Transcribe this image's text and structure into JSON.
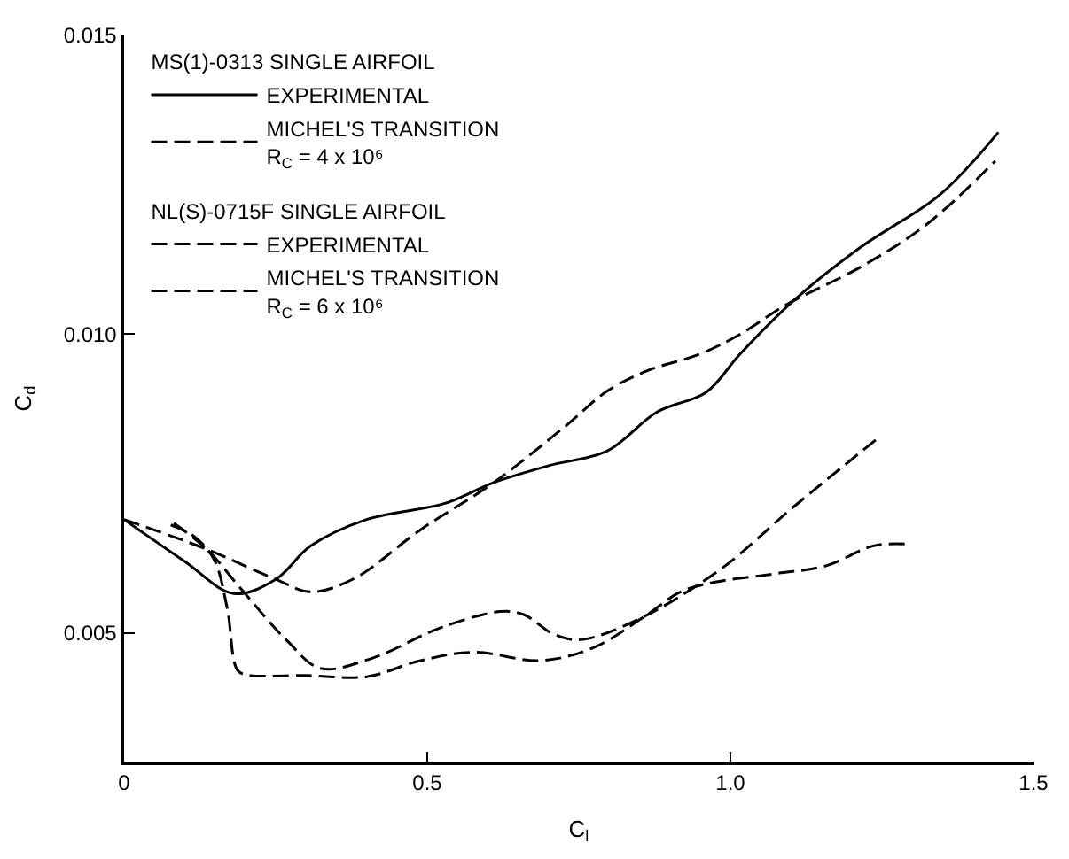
{
  "chart_data": {
    "type": "line",
    "xlabel": "C$_{l}$",
    "ylabel": "C$_{d}$",
    "xlim": [
      0,
      1.5
    ],
    "ylim": [
      0.00285,
      0.015
    ],
    "xticks": [
      0,
      0.5,
      {
        "value": 1,
        "label": "1.0"
      },
      1.5
    ],
    "yticks": [
      0.005,
      {
        "value": 0.01,
        "label": "0.010"
      },
      0.015
    ],
    "legend": "top left",
    "marker": "none",
    "annotations": [
      "MS(1)-0313 SINGLE AIRFOIL",
      "NL(S)-0715F SINGLE AIRFOIL"
    ],
    "series": [
      {
        "name": "EXPERIMENTAL",
        "color": "#000000",
        "line_style": "solid",
        "x": [
          0,
          0.1,
          0.181,
          0.25,
          0.308,
          0.4,
          0.529,
          0.61,
          0.7,
          0.797,
          0.879,
          0.96,
          1.016,
          1.104,
          1.214,
          1.346,
          1.442
        ],
        "values": [
          0.0069,
          0.0062,
          0.00566,
          0.0059,
          0.00646,
          0.0069,
          0.00717,
          0.00752,
          0.0078,
          0.00805,
          0.0087,
          0.00903,
          0.00967,
          0.01056,
          0.01145,
          0.01234,
          0.01338
        ]
      },
      {
        "name": "MICHEL'S TRANSITION\nR$_{C}$ = 4 x 10⁶",
        "color": "#000000",
        "line_style": "dashed",
        "x": [
          0,
          0.137,
          0.25,
          0.308,
          0.379,
          0.489,
          0.61,
          0.73,
          0.797,
          0.863,
          0.95,
          1.016,
          1.093,
          1.214,
          1.324,
          1.437
        ],
        "values": [
          0.0069,
          0.0064,
          0.0059,
          0.00569,
          0.00591,
          0.00673,
          0.00752,
          0.00848,
          0.00905,
          0.00939,
          0.00967,
          0.01,
          0.0105,
          0.01112,
          0.01184,
          0.0129
        ]
      },
      {
        "name": "EXPERIMENTAL",
        "color": "#000000",
        "line_style": "dashed",
        "x": [
          0.077,
          0.115,
          0.148,
          0.17,
          0.187,
          0.203,
          0.3,
          0.4,
          0.489,
          0.577,
          0.687,
          0.775,
          0.863,
          0.918,
          0.973,
          1.071,
          1.159,
          1.236,
          1.291
        ],
        "values": [
          0.00681,
          0.00662,
          0.00624,
          0.00542,
          0.00438,
          0.0043,
          0.00429,
          0.00427,
          0.00454,
          0.00468,
          0.00454,
          0.00476,
          0.00531,
          0.00569,
          0.00585,
          0.00599,
          0.00613,
          0.00646,
          0.00649
        ]
      },
      {
        "name": "MICHEL'S TRANSITION\nR$_{C}$ = 6 x 10⁶",
        "color": "#000000",
        "line_style": "dashed",
        "x": [
          0.082,
          0.137,
          0.192,
          0.269,
          0.324,
          0.412,
          0.522,
          0.621,
          0.659,
          0.709,
          0.753,
          0.852,
          0.984,
          1.104,
          1.247
        ],
        "values": [
          0.00684,
          0.0064,
          0.00575,
          0.00487,
          0.00441,
          0.00459,
          0.00509,
          0.00536,
          0.00531,
          0.00498,
          0.00489,
          0.00525,
          0.00607,
          0.00711,
          0.00829
        ]
      }
    ]
  }
}
